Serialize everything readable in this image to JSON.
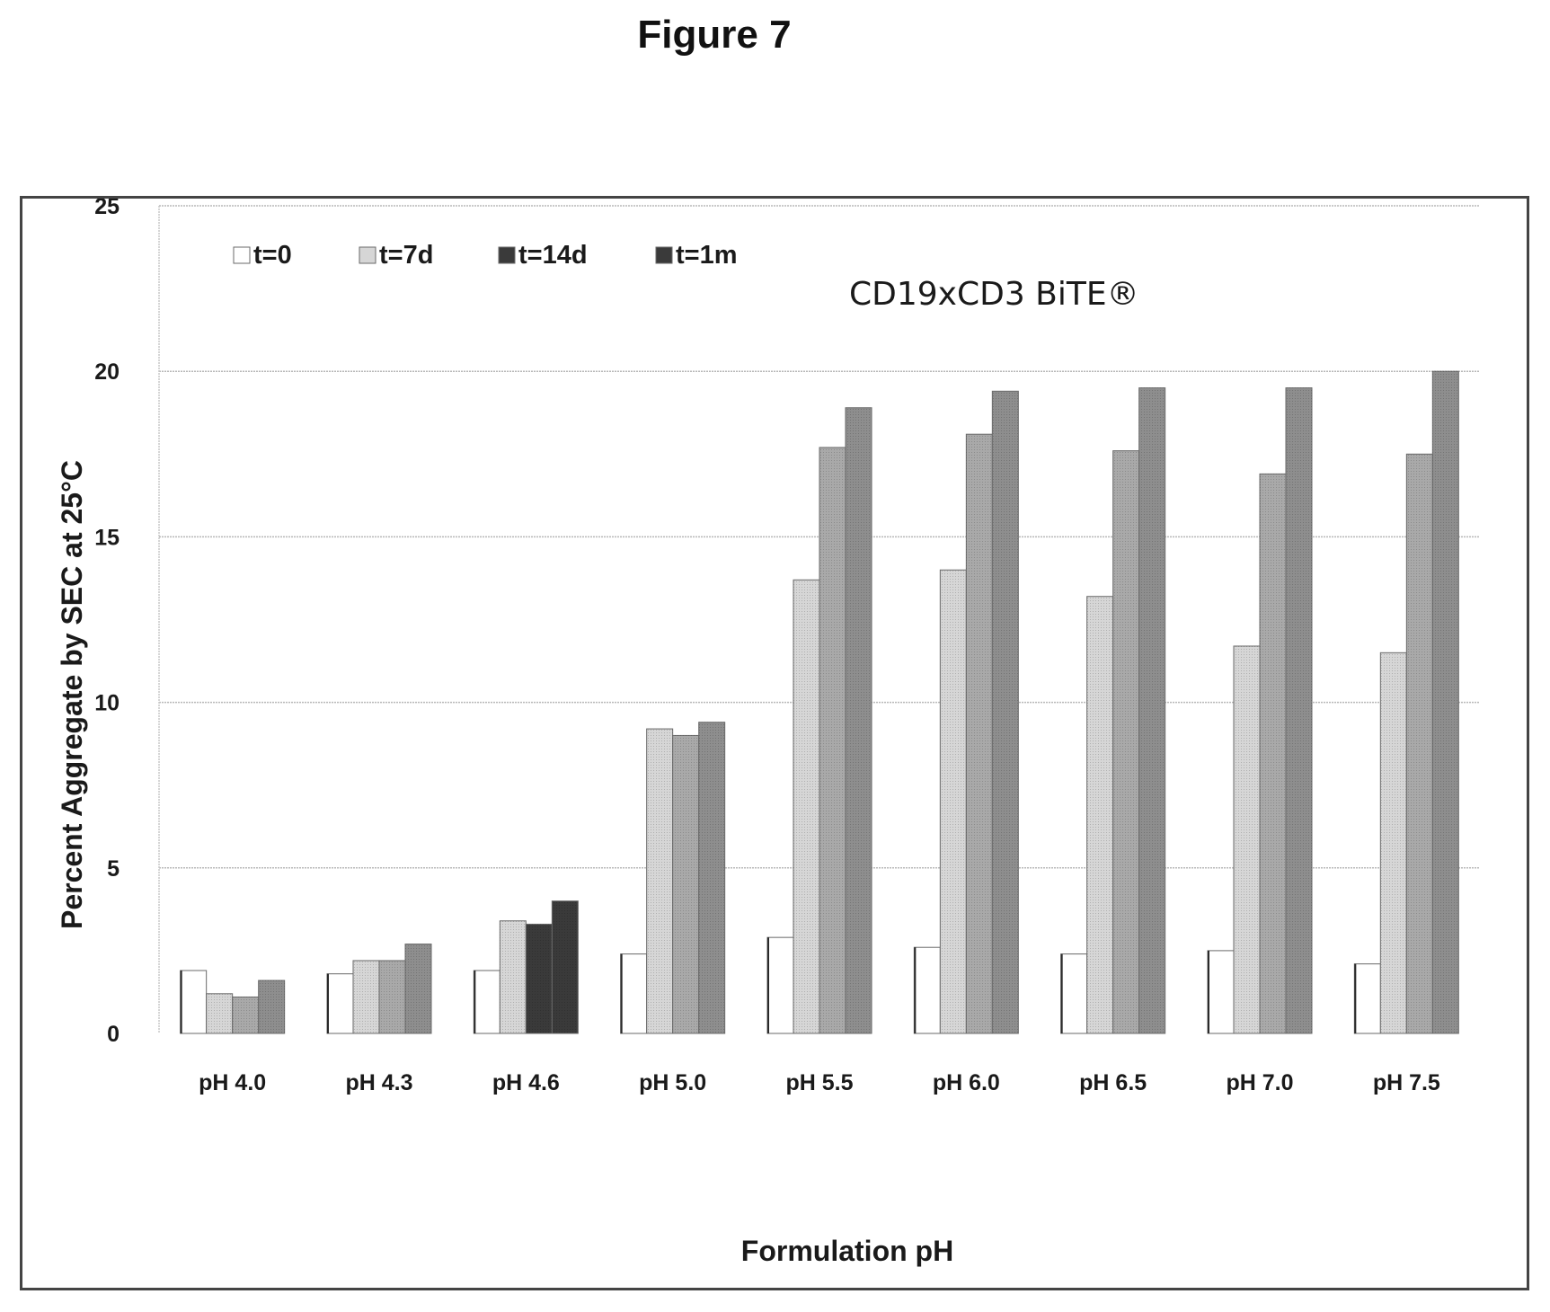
{
  "figure_label": "Figure 7",
  "chart_data": {
    "type": "bar",
    "title": "",
    "annotation": "CD19xCD3 BiTE®",
    "xlabel": "Formulation pH",
    "ylabel": "Percent Aggregate by SEC at 25°C",
    "ylim": [
      0,
      25
    ],
    "yticks": [
      0,
      5,
      10,
      15,
      20,
      25
    ],
    "grid": true,
    "legend_position": "top-left",
    "categories": [
      "pH 4.0",
      "pH 4.3",
      "pH 4.6",
      "pH 5.0",
      "pH 5.5",
      "pH 6.0",
      "pH 6.5",
      "pH 7.0",
      "pH 7.5"
    ],
    "series": [
      {
        "name": "t=0",
        "color": "#ffffff",
        "values": [
          1.9,
          1.8,
          1.9,
          2.4,
          2.9,
          2.6,
          2.4,
          2.5,
          2.1
        ]
      },
      {
        "name": "t=7d",
        "color": "#d6d6d6",
        "values": [
          1.2,
          2.2,
          3.4,
          9.2,
          13.7,
          14.0,
          13.2,
          11.7,
          11.5
        ]
      },
      {
        "name": "t=14d",
        "color": "#a9a9a9",
        "values": [
          1.1,
          2.2,
          3.3,
          9.0,
          17.7,
          18.1,
          17.6,
          16.9,
          17.5
        ]
      },
      {
        "name": "t=1m",
        "color": "#8e8e8e",
        "values": [
          1.6,
          2.7,
          4.0,
          9.4,
          18.9,
          19.4,
          19.5,
          19.5,
          20.0
        ]
      }
    ]
  }
}
